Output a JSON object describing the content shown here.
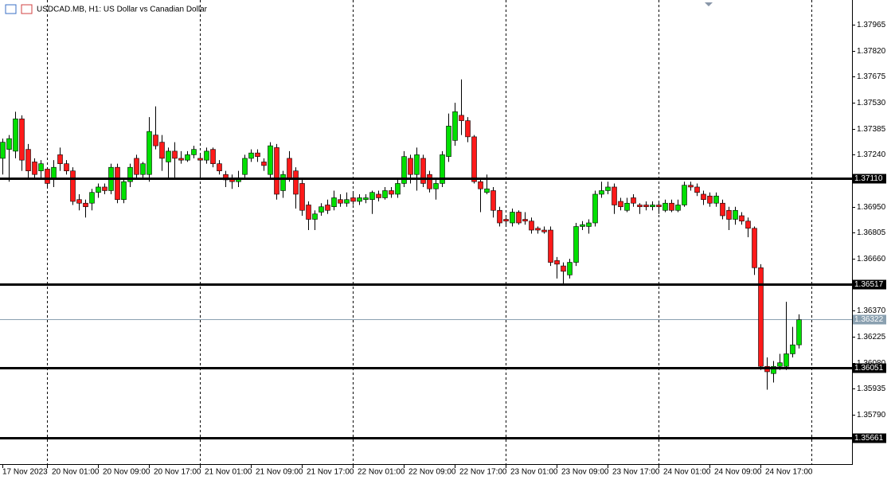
{
  "chart_data": {
    "type": "candlestick",
    "title": "USDCAD.MB, H1:  US Dollar vs Canadian Dollar",
    "up_color": "#00e000",
    "down_color": "#ff1a1a",
    "categories": [
      "17 Nov 2023",
      null,
      null,
      null,
      null,
      null,
      null,
      "20 Nov 01:00",
      null,
      null,
      null,
      null,
      null,
      null,
      null,
      "20 Nov 09:00",
      null,
      null,
      null,
      null,
      null,
      null,
      null,
      "20 Nov 17:00",
      null,
      null,
      null,
      null,
      null,
      null,
      null,
      "21 Nov 01:00",
      null,
      null,
      null,
      null,
      null,
      null,
      null,
      "21 Nov 09:00",
      null,
      null,
      null,
      null,
      null,
      null,
      null,
      "21 Nov 17:00",
      null,
      null,
      null,
      null,
      null,
      null,
      null,
      "22 Nov 01:00",
      null,
      null,
      null,
      null,
      null,
      null,
      null,
      "22 Nov 09:00",
      null,
      null,
      null,
      null,
      null,
      null,
      null,
      "22 Nov 17:00",
      null,
      null,
      null,
      null,
      null,
      null,
      null,
      "23 Nov 01:00",
      null,
      null,
      null,
      null,
      null,
      null,
      null,
      "23 Nov 09:00",
      null,
      null,
      null,
      null,
      null,
      null,
      null,
      "23 Nov 17:00",
      null,
      null,
      null,
      null,
      null,
      null,
      null,
      "24 Nov 01:00",
      null,
      null,
      null,
      null,
      null,
      null,
      null,
      "24 Nov 09:00",
      null,
      null,
      null,
      null,
      null,
      null,
      null,
      "24 Nov 17:00",
      null,
      null,
      null,
      null,
      null,
      null
    ],
    "open": [
      1.3722,
      1.3727,
      1.3726,
      1.3744,
      1.3727,
      1.372,
      1.3715,
      1.3716,
      1.3711,
      1.3724,
      1.3719,
      1.3715,
      1.3699,
      1.3697,
      1.3697,
      1.3703,
      1.3706,
      1.3704,
      1.3717,
      1.3699,
      1.3709,
      1.3722,
      1.3713,
      1.3713,
      1.3735,
      1.3731,
      1.372,
      1.3726,
      1.3722,
      1.3721,
      1.3724,
      1.3722,
      1.3721,
      1.3727,
      1.3719,
      1.3713,
      1.3711,
      1.3709,
      1.3713,
      1.3722,
      1.3725,
      1.372,
      1.3713,
      1.3728,
      1.3704,
      1.3722,
      1.3715,
      1.3708,
      1.3696,
      1.3688,
      1.3692,
      1.3696,
      1.3695,
      1.3699,
      1.3697,
      1.37,
      1.3698,
      1.3699,
      1.3699,
      1.3702,
      1.37,
      1.3704,
      1.3702,
      1.3708,
      1.3722,
      1.3713,
      1.3722,
      1.3713,
      1.3705,
      1.3708,
      1.3723,
      1.3732,
      1.3746,
      1.3743,
      1.3734,
      1.3709,
      1.3703,
      1.3704,
      1.3693,
      1.3688,
      1.3686,
      1.3692,
      1.3688,
      1.3687,
      1.3683,
      1.3682,
      1.3682,
      1.3665,
      1.3662,
      1.3657,
      1.3664,
      1.3684,
      1.3684,
      1.3686,
      1.3702,
      1.3704,
      1.3706,
      1.3698,
      1.3693,
      1.37,
      1.3696,
      1.3696,
      1.3695,
      1.3696,
      1.3693,
      1.3697,
      1.3693,
      1.3696,
      1.3707,
      1.3706,
      1.3702,
      1.3701,
      1.3697,
      1.3697,
      1.3693,
      1.3688,
      1.369,
      1.3687,
      1.3683,
      1.3661,
      1.3606,
      1.3602,
      1.3606,
      1.3606,
      1.3613,
      1.3618
    ],
    "high": [
      1.3733,
      1.3735,
      1.3748,
      1.3746,
      1.373,
      1.3722,
      1.3721,
      1.3717,
      1.3721,
      1.3728,
      1.3721,
      1.3717,
      1.3702,
      1.3699,
      1.3705,
      1.3708,
      1.3708,
      1.3719,
      1.3719,
      1.3711,
      1.3719,
      1.3724,
      1.372,
      1.3745,
      1.3751,
      1.3735,
      1.3728,
      1.3731,
      1.3726,
      1.3726,
      1.3729,
      1.3724,
      1.3728,
      1.3728,
      1.3721,
      1.3715,
      1.3713,
      1.3715,
      1.3724,
      1.3727,
      1.3727,
      1.3722,
      1.3731,
      1.373,
      1.3715,
      1.3726,
      1.3717,
      1.3711,
      1.3698,
      1.3693,
      1.3697,
      1.3699,
      1.3704,
      1.3702,
      1.3703,
      1.3703,
      1.3702,
      1.3702,
      1.3704,
      1.3704,
      1.3706,
      1.3706,
      1.371,
      1.3726,
      1.3724,
      1.3728,
      1.3724,
      1.3715,
      1.371,
      1.3726,
      1.3747,
      1.3753,
      1.3766,
      1.3745,
      1.3735,
      1.3711,
      1.3713,
      1.3706,
      1.3695,
      1.3689,
      1.3694,
      1.3693,
      1.3692,
      1.3689,
      1.3684,
      1.3684,
      1.3684,
      1.3667,
      1.3664,
      1.3666,
      1.3686,
      1.3687,
      1.3688,
      1.3704,
      1.3709,
      1.3709,
      1.3708,
      1.37,
      1.37,
      1.3702,
      1.3697,
      1.3698,
      1.3698,
      1.3698,
      1.3699,
      1.3699,
      1.3699,
      1.3709,
      1.3709,
      1.3708,
      1.3704,
      1.3703,
      1.3703,
      1.3699,
      1.3695,
      1.3695,
      1.3692,
      1.3689,
      1.3684,
      1.3663,
      1.3611,
      1.3609,
      1.3613,
      1.3642,
      1.3628,
      1.3635
    ],
    "low": [
      1.3713,
      1.3709,
      1.3722,
      1.3715,
      1.3711,
      1.3711,
      1.3711,
      1.3706,
      1.3706,
      1.3715,
      1.3713,
      1.3696,
      1.3693,
      1.3689,
      1.3693,
      1.37,
      1.3702,
      1.3702,
      1.3697,
      1.3697,
      1.3706,
      1.3711,
      1.3711,
      1.3709,
      1.3727,
      1.3715,
      1.3711,
      1.3711,
      1.3719,
      1.372,
      1.3722,
      1.3711,
      1.3719,
      1.3717,
      1.3713,
      1.3706,
      1.3705,
      1.3706,
      1.3711,
      1.372,
      1.372,
      1.3715,
      1.3711,
      1.3699,
      1.37,
      1.3709,
      1.3694,
      1.369,
      1.3682,
      1.3682,
      1.369,
      1.3691,
      1.3693,
      1.3695,
      1.3695,
      1.3696,
      1.3696,
      1.3697,
      1.3691,
      1.3698,
      1.3699,
      1.37,
      1.37,
      1.3706,
      1.3708,
      1.3704,
      1.3706,
      1.3703,
      1.3699,
      1.3706,
      1.372,
      1.3729,
      1.3735,
      1.3731,
      1.3708,
      1.3692,
      1.3702,
      1.3689,
      1.3684,
      1.3684,
      1.3684,
      1.3685,
      1.3685,
      1.368,
      1.368,
      1.368,
      1.3662,
      1.3655,
      1.3652,
      1.3655,
      1.3662,
      1.3682,
      1.368,
      1.3684,
      1.37,
      1.3702,
      1.3691,
      1.3693,
      1.3692,
      1.3695,
      1.3691,
      1.3693,
      1.3693,
      1.3691,
      1.3692,
      1.3692,
      1.3692,
      1.3695,
      1.3704,
      1.3701,
      1.3696,
      1.3695,
      1.3695,
      1.3688,
      1.3682,
      1.3685,
      1.3685,
      1.3678,
      1.3657,
      1.3604,
      1.3593,
      1.3597,
      1.3604,
      1.3604,
      1.3611,
      1.3616
    ],
    "close": [
      1.3731,
      1.3733,
      1.3744,
      1.3721,
      1.3715,
      1.3713,
      1.3719,
      1.3708,
      1.3717,
      1.3719,
      1.3715,
      1.3698,
      1.3697,
      1.3695,
      1.3703,
      1.3706,
      1.3704,
      1.3717,
      1.3699,
      1.3709,
      1.3717,
      1.3713,
      1.3719,
      1.3737,
      1.3729,
      1.3722,
      1.3726,
      1.3722,
      1.3721,
      1.3724,
      1.3727,
      1.3721,
      1.3726,
      1.3719,
      1.3715,
      1.371,
      1.3709,
      1.3711,
      1.3722,
      1.3725,
      1.3723,
      1.3718,
      1.3729,
      1.3702,
      1.3713,
      1.3711,
      1.3702,
      1.3693,
      1.3688,
      1.3691,
      1.3695,
      1.3693,
      1.37,
      1.3697,
      1.3699,
      1.3698,
      1.37,
      1.37,
      1.3703,
      1.37,
      1.3704,
      1.3702,
      1.3708,
      1.3723,
      1.3713,
      1.3724,
      1.3708,
      1.3705,
      1.3708,
      1.3724,
      1.374,
      1.3748,
      1.3743,
      1.3734,
      1.3709,
      1.3705,
      1.3705,
      1.3693,
      1.3686,
      1.3687,
      1.3692,
      1.3686,
      1.3687,
      1.3682,
      1.3682,
      1.3681,
      1.3664,
      1.3663,
      1.3659,
      1.3664,
      1.3684,
      1.3685,
      1.3686,
      1.3702,
      1.3704,
      1.3706,
      1.3696,
      1.3695,
      1.3697,
      1.3697,
      1.3695,
      1.3695,
      1.3696,
      1.3695,
      1.3697,
      1.3693,
      1.3696,
      1.3707,
      1.3706,
      1.3703,
      1.3699,
      1.3697,
      1.3701,
      1.369,
      1.3688,
      1.3693,
      1.3687,
      1.3683,
      1.3661,
      1.3606,
      1.3603,
      1.3606,
      1.3608,
      1.3613,
      1.3618,
      1.3632
    ],
    "ylim": [
      1.35515,
      1.38103
    ],
    "yticks": [
      1.37965,
      {
        "value": 1.3782,
        "label": "1.37820"
      },
      1.37675,
      {
        "value": 1.3753,
        "label": "1.37530"
      },
      1.37385,
      {
        "value": 1.3724,
        "label": "1.37240"
      },
      {
        "value": 1.3695,
        "label": "1.36950"
      },
      1.36805,
      {
        "value": 1.3666,
        "label": "1.36660"
      },
      {
        "value": 1.3637,
        "label": "1.36370"
      },
      1.36225,
      {
        "value": 1.3608,
        "label": "1.36080"
      },
      1.35935,
      {
        "value": 1.3579,
        "label": "1.35790"
      }
    ],
    "levels": [
      {
        "value": 1.3711,
        "label": "1.37110"
      },
      1.36517,
      1.36051,
      1.35661
    ],
    "last_price": 1.36322
  }
}
